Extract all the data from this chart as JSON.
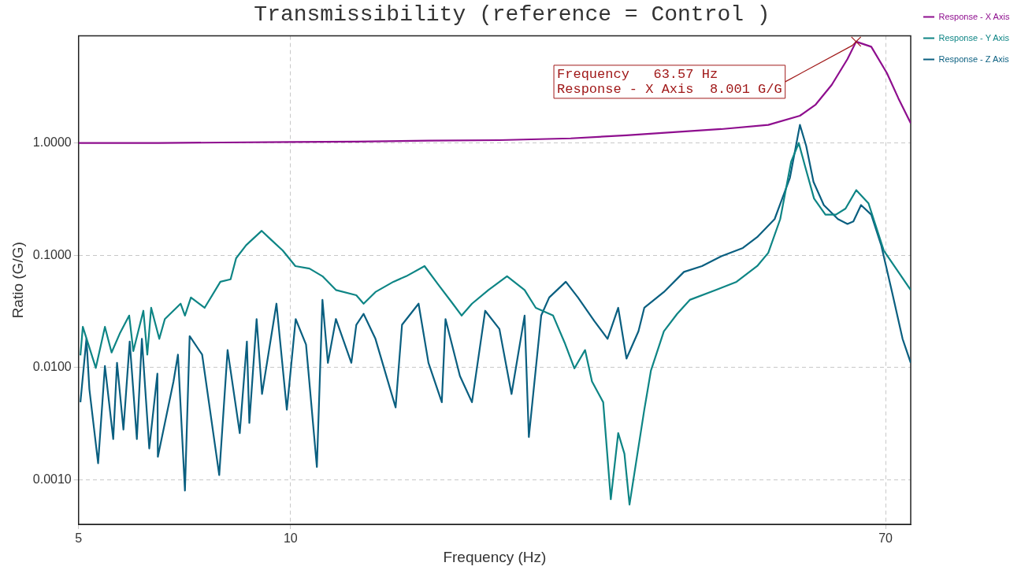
{
  "chart_data": {
    "type": "line",
    "title": "Transmissibility (reference = Control )",
    "xlabel": "Frequency (Hz)",
    "ylabel": "Ratio (G/G)",
    "log": "xy",
    "xlim": [
      5,
      76
    ],
    "ylim": [
      0.0004,
      9
    ],
    "xticks": [
      5,
      10,
      70
    ],
    "yticks": [
      {
        "value": 0.001,
        "label": "0.0010"
      },
      {
        "value": 0.01,
        "label": "0.0100"
      },
      {
        "value": 0.1,
        "label": "0.1000"
      },
      {
        "value": 1,
        "label": "1.0000"
      }
    ],
    "grid": true,
    "legend": "right",
    "marker": "none",
    "line_style": "solid",
    "annotations": [
      {
        "text": "Frequency   63.57 Hz\nResponse - X Axis  8.001 G/G",
        "x": 63.57,
        "y": 8.001
      }
    ],
    "series": [
      {
        "name": "Response - X Axis",
        "color": "#8e0e8e",
        "x": [
          5,
          6.5,
          8,
          10,
          12.4,
          15.7,
          19.8,
          25,
          30,
          35,
          40.9,
          47.7,
          52.9,
          55.7,
          58.7,
          61.8,
          63.57,
          66.8,
          70.3,
          73,
          76
        ],
        "values": [
          1.0,
          1.0,
          1.01,
          1.02,
          1.03,
          1.05,
          1.06,
          1.1,
          1.17,
          1.25,
          1.33,
          1.45,
          1.75,
          2.2,
          3.3,
          5.6,
          8.001,
          7.2,
          4.2,
          2.5,
          1.5
        ]
      },
      {
        "name": "Response - Y Axis",
        "color": "#0e8585",
        "x": [
          5.03,
          5.07,
          5.29,
          5.45,
          5.57,
          5.72,
          5.9,
          5.98,
          6.18,
          6.26,
          6.34,
          6.51,
          6.63,
          6.98,
          7.08,
          7.22,
          7.55,
          7.95,
          8.22,
          8.37,
          8.65,
          9.1,
          9.4,
          9.75,
          10.16,
          10.64,
          11.1,
          11.6,
          12.4,
          12.7,
          13.2,
          14.0,
          14.6,
          15.5,
          16.2,
          17.0,
          17.5,
          18.1,
          19.1,
          20.3,
          21.5,
          22.3,
          23.6,
          24.5,
          25.3,
          26.2,
          26.8,
          27.8,
          28.5,
          29.2,
          29.8,
          30.3,
          31.8,
          32.5,
          33.9,
          35.4,
          36.9,
          40.2,
          43.0,
          46.0,
          47.7,
          49.6,
          51.4,
          52.7,
          53.8,
          55.4,
          57.5,
          59.5,
          61.4,
          63.6,
          66.2,
          69.6,
          76
        ],
        "values": [
          0.0128,
          0.023,
          0.0099,
          0.023,
          0.0136,
          0.02,
          0.029,
          0.014,
          0.032,
          0.013,
          0.034,
          0.018,
          0.027,
          0.037,
          0.029,
          0.042,
          0.034,
          0.058,
          0.061,
          0.094,
          0.123,
          0.165,
          0.136,
          0.11,
          0.08,
          0.076,
          0.065,
          0.049,
          0.044,
          0.037,
          0.047,
          0.058,
          0.065,
          0.08,
          0.055,
          0.037,
          0.029,
          0.037,
          0.049,
          0.065,
          0.049,
          0.034,
          0.029,
          0.0167,
          0.0098,
          0.0143,
          0.0075,
          0.0049,
          0.00067,
          0.0026,
          0.0017,
          0.0006,
          0.0042,
          0.0094,
          0.021,
          0.03,
          0.04,
          0.049,
          0.058,
          0.08,
          0.105,
          0.21,
          0.68,
          1.0,
          0.62,
          0.32,
          0.23,
          0.23,
          0.26,
          0.38,
          0.29,
          0.11,
          0.049
        ]
      },
      {
        "name": "Response - Z Axis",
        "color": "#0a5f80",
        "x": [
          5.03,
          5.13,
          5.18,
          5.33,
          5.45,
          5.6,
          5.67,
          5.79,
          5.91,
          6.05,
          6.15,
          6.3,
          6.47,
          6.48,
          6.82,
          6.92,
          7.08,
          7.19,
          7.49,
          7.92,
          8.14,
          8.47,
          8.67,
          8.74,
          8.95,
          9.11,
          9.55,
          9.88,
          10.17,
          10.52,
          10.9,
          11.1,
          11.3,
          11.6,
          12.2,
          12.4,
          12.7,
          13.2,
          14.1,
          14.4,
          15.2,
          15.7,
          16.4,
          16.6,
          17.4,
          18.1,
          18.9,
          19.8,
          20.6,
          21.5,
          21.8,
          22.7,
          23.3,
          24.6,
          25.6,
          27.0,
          28.2,
          29.2,
          30.0,
          31.2,
          31.8,
          33.9,
          36.2,
          38.4,
          40.9,
          43.9,
          46.0,
          48.7,
          51.2,
          52.9,
          54.0,
          55.3,
          57.2,
          59.9,
          61.8,
          63.0,
          64.6,
          66.8,
          69.0,
          71.5,
          74.0,
          76
        ],
        "values": [
          0.0049,
          0.018,
          0.0064,
          0.0014,
          0.0103,
          0.0023,
          0.011,
          0.0028,
          0.017,
          0.0023,
          0.018,
          0.0019,
          0.0088,
          0.0016,
          0.0075,
          0.013,
          0.0008,
          0.019,
          0.013,
          0.0011,
          0.0143,
          0.0026,
          0.017,
          0.0032,
          0.027,
          0.0058,
          0.037,
          0.0042,
          0.027,
          0.016,
          0.0013,
          0.04,
          0.011,
          0.027,
          0.011,
          0.024,
          0.03,
          0.018,
          0.0044,
          0.024,
          0.037,
          0.011,
          0.0049,
          0.027,
          0.0084,
          0.0049,
          0.032,
          0.022,
          0.0058,
          0.029,
          0.0024,
          0.029,
          0.042,
          0.058,
          0.042,
          0.026,
          0.018,
          0.034,
          0.012,
          0.021,
          0.034,
          0.047,
          0.071,
          0.08,
          0.098,
          0.116,
          0.145,
          0.21,
          0.49,
          1.45,
          0.94,
          0.45,
          0.28,
          0.21,
          0.19,
          0.2,
          0.28,
          0.23,
          0.123,
          0.047,
          0.018,
          0.011
        ]
      }
    ]
  }
}
